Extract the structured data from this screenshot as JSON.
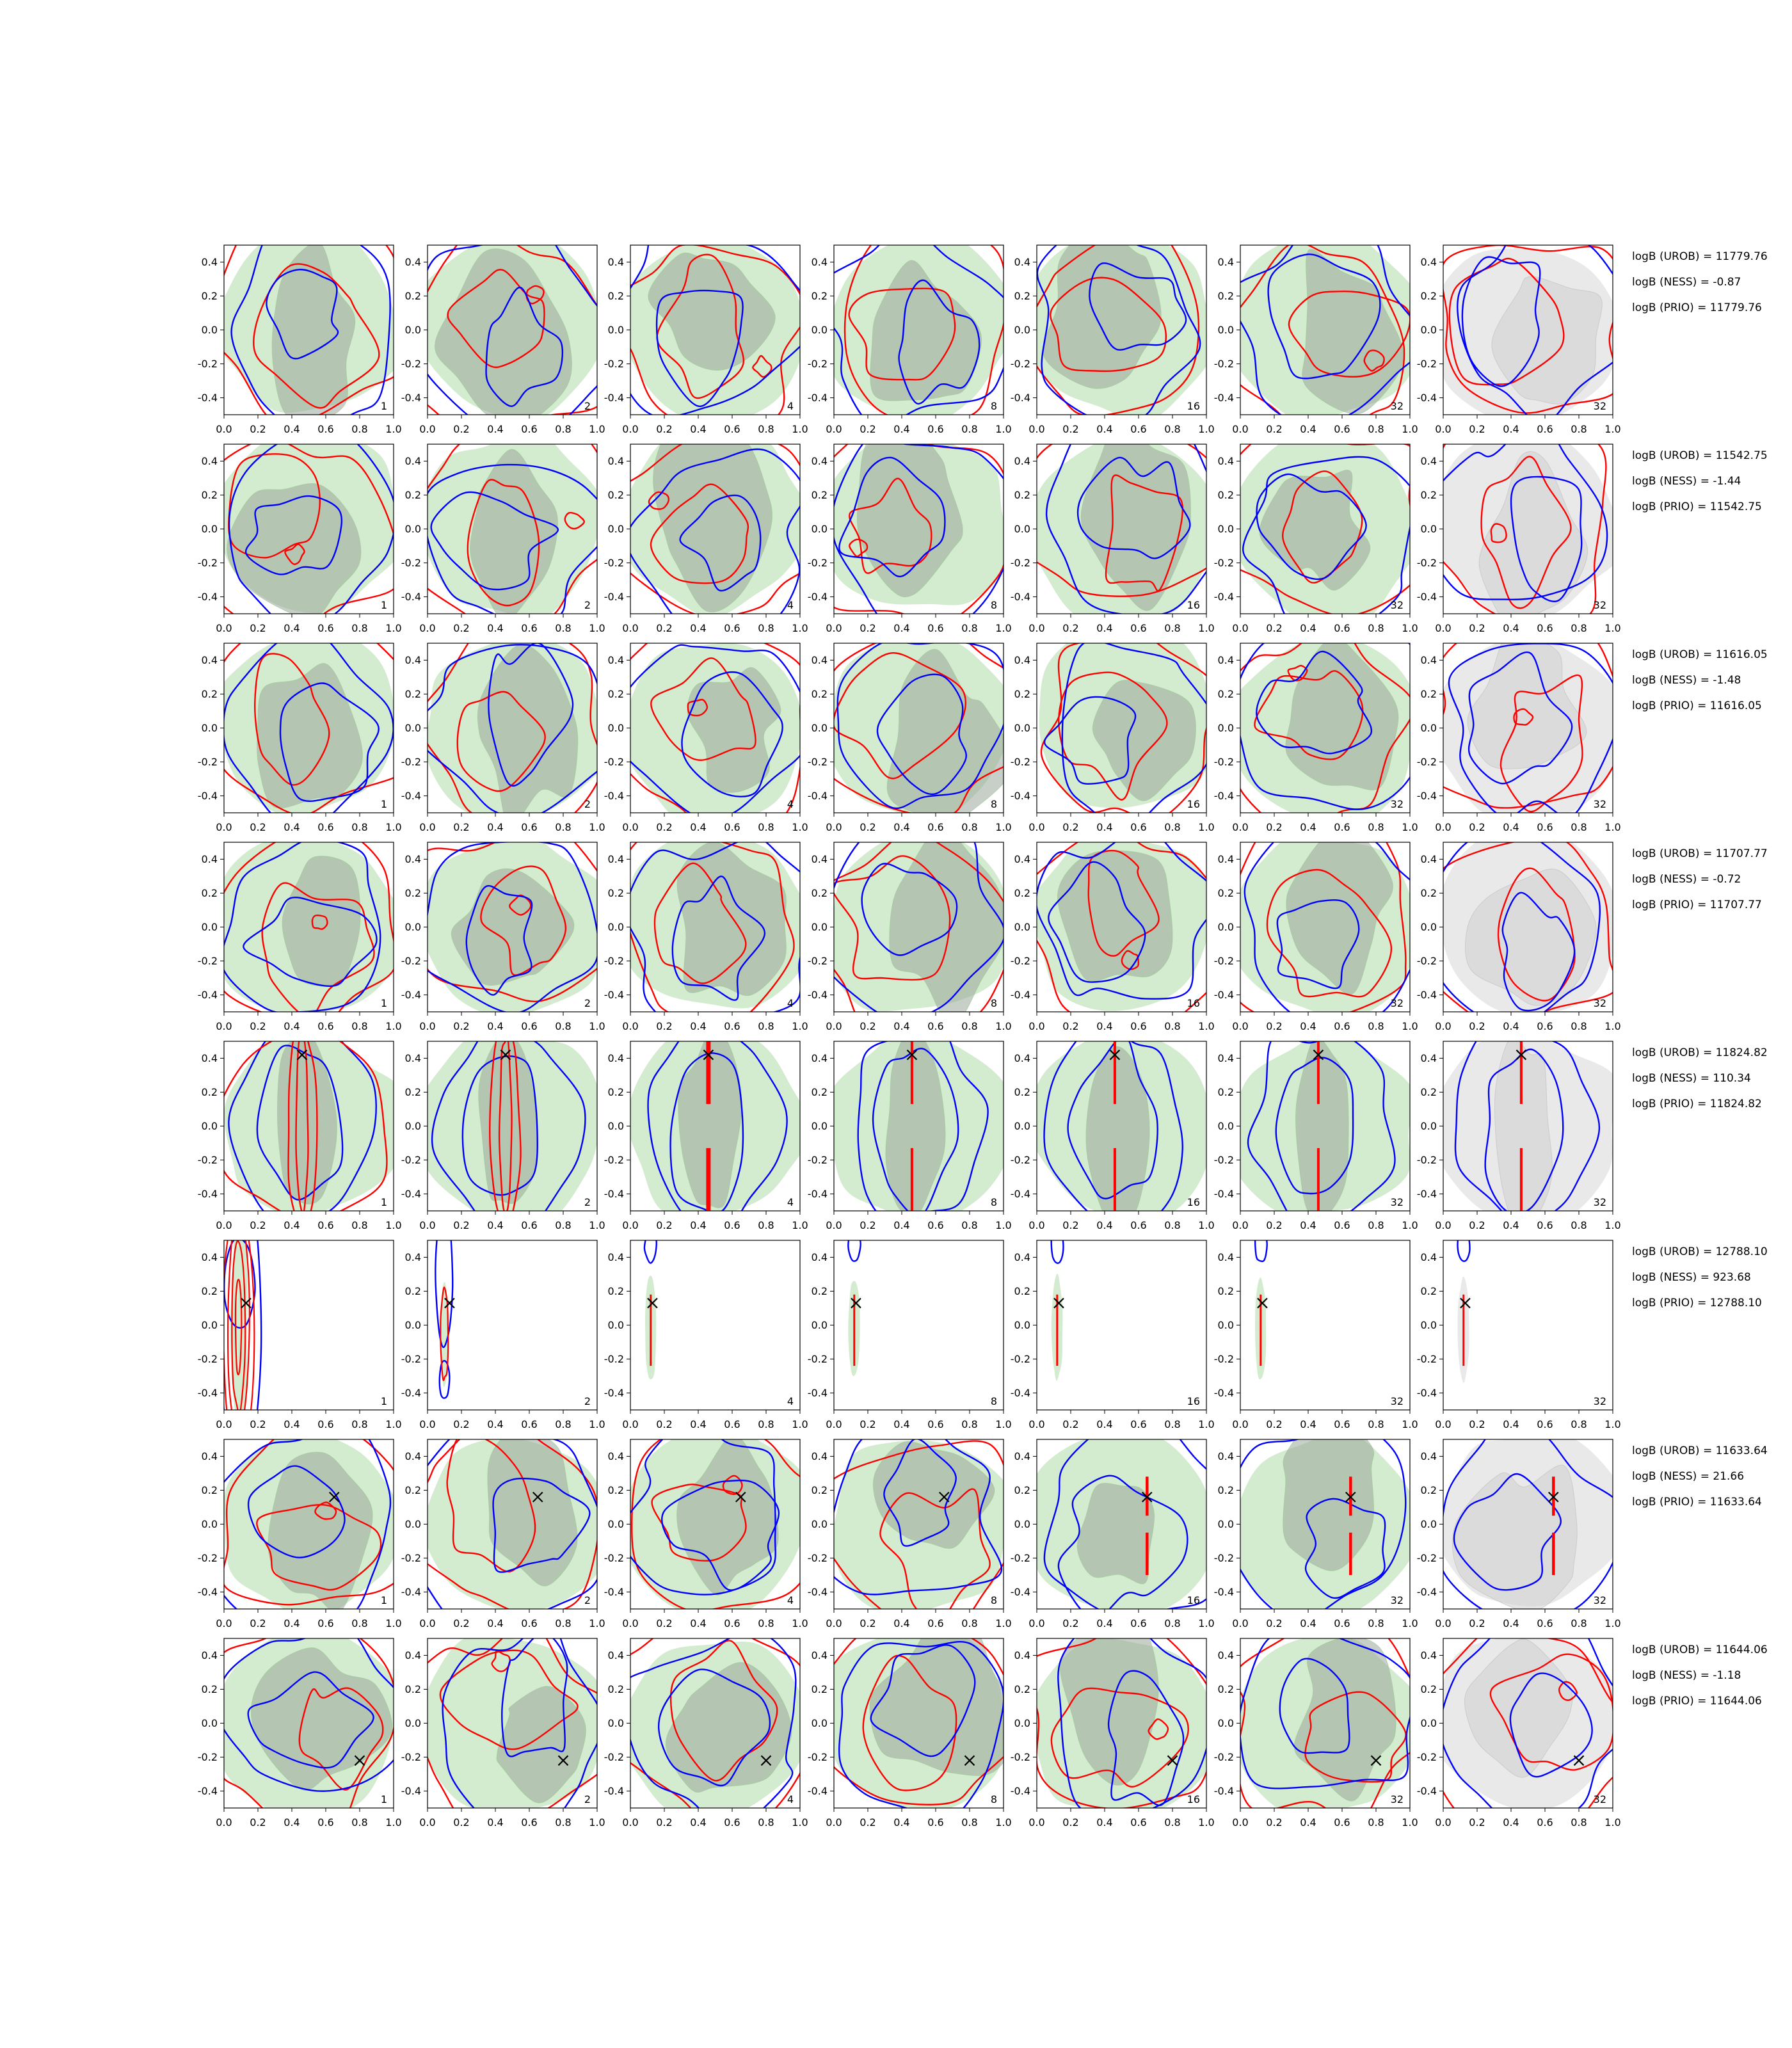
{
  "figure": {
    "title": "",
    "background": "#ffffff",
    "panel_labels": [
      "1",
      "2",
      "4",
      "8",
      "16",
      "32",
      "32"
    ],
    "xticklabels": [
      "0.0",
      "0.2",
      "0.4",
      "0.6",
      "0.8",
      "1.0"
    ],
    "yticklabels": [
      "0.4",
      "0.2",
      "0.0",
      "-0.2",
      "-0.4"
    ],
    "colors": {
      "contour_red": "#ff0000",
      "contour_blue": "#0000ff",
      "fill_green": "#d3ebce",
      "fill_green_edge": "#96c690",
      "fill_overlap": "#9aa89a",
      "fill_gray": "#e9e9e9",
      "fill_gray_dark": "#cfcfcf",
      "marker_black": "#000000",
      "axis_black": "#000000"
    }
  },
  "rows": [
    {
      "style": "contours",
      "marker": null,
      "annotations": [
        "logB (UROB) = 11779.76",
        "logB (NESS) = -0.87",
        "logB (PRIO) = 11779.76"
      ]
    },
    {
      "style": "contours",
      "marker": null,
      "annotations": [
        "logB (UROB) = 11542.75",
        "logB (NESS) = -1.44",
        "logB (PRIO) = 11542.75"
      ]
    },
    {
      "style": "contours",
      "marker": null,
      "annotations": [
        "logB (UROB) = 11616.05",
        "logB (NESS) = -1.48",
        "logB (PRIO) = 11616.05"
      ]
    },
    {
      "style": "contours",
      "marker": null,
      "annotations": [
        "logB (UROB) = 11707.77",
        "logB (NESS) = -0.72",
        "logB (PRIO) = 11707.77"
      ]
    },
    {
      "style": "vline",
      "marker": {
        "x": 0.46,
        "y": 0.42
      },
      "vline_x": 0.46,
      "vline_solid_from_col": 2,
      "annotations": [
        "logB (UROB) = 11824.82",
        "logB (NESS) = 110.34",
        "logB (PRIO) = 11824.82"
      ]
    },
    {
      "style": "collapsed",
      "marker": {
        "x": 0.13,
        "y": 0.13
      },
      "blob_x": 0.12,
      "annotations": [
        "logB (UROB) = 12788.10",
        "logB (NESS) = 923.68",
        "logB (PRIO) = 12788.10"
      ]
    },
    {
      "style": "contours",
      "marker": {
        "x": 0.65,
        "y": 0.16
      },
      "vline_x": 0.65,
      "vline_dashed_from_col": 4,
      "annotations": [
        "logB (UROB) = 11633.64",
        "logB (NESS) = 21.66",
        "logB (PRIO) = 11633.64"
      ]
    },
    {
      "style": "contours",
      "marker": {
        "x": 0.8,
        "y": -0.22
      },
      "annotations": [
        "logB (UROB) = 11644.06",
        "logB (NESS) = -1.18",
        "logB (PRIO) = 11644.06"
      ]
    }
  ],
  "chart_data": {
    "type": "heatmap",
    "subtype": "contour_grid",
    "description": "8x7 grid of 2D density contour panels; red and blue KDE contours over green (cols 1-6) or gray (col 7) filled densities",
    "x_range": [
      0.0,
      1.0
    ],
    "y_range": [
      -0.5,
      0.5
    ],
    "xticks": [
      0.0,
      0.2,
      0.4,
      0.6,
      0.8,
      1.0
    ],
    "yticks": [
      0.4,
      0.2,
      0.0,
      -0.2,
      -0.4
    ],
    "column_labels": [
      1,
      2,
      4,
      8,
      16,
      32,
      32
    ],
    "rows": [
      {
        "logB_UROB": 11779.76,
        "logB_NESS": -0.87,
        "logB_PRIO": 11779.76,
        "marker": null
      },
      {
        "logB_UROB": 11542.75,
        "logB_NESS": -1.44,
        "logB_PRIO": 11542.75,
        "marker": null
      },
      {
        "logB_UROB": 11616.05,
        "logB_NESS": -1.48,
        "logB_PRIO": 11616.05,
        "marker": null
      },
      {
        "logB_UROB": 11707.77,
        "logB_NESS": -0.72,
        "logB_PRIO": 11707.77,
        "marker": null
      },
      {
        "logB_UROB": 11824.82,
        "logB_NESS": 110.34,
        "logB_PRIO": 11824.82,
        "marker": [
          0.46,
          0.42
        ]
      },
      {
        "logB_UROB": 12788.1,
        "logB_NESS": 923.68,
        "logB_PRIO": 12788.1,
        "marker": [
          0.13,
          0.13
        ]
      },
      {
        "logB_UROB": 11633.64,
        "logB_NESS": 21.66,
        "logB_PRIO": 11633.64,
        "marker": [
          0.65,
          0.16
        ]
      },
      {
        "logB_UROB": 11644.06,
        "logB_NESS": -1.18,
        "logB_PRIO": 11644.06,
        "marker": [
          0.8,
          -0.22
        ]
      }
    ]
  }
}
